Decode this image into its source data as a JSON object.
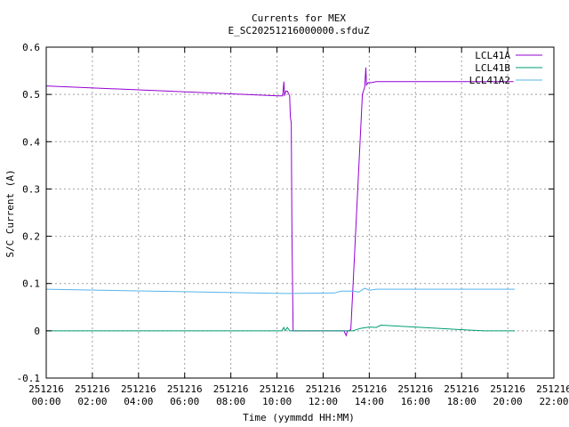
{
  "chart_data": {
    "type": "line",
    "title": "Currents for MEX",
    "subtitle": "E_SC20251216000000.sfduZ",
    "xlabel": "Time (yymmdd HH:MM)",
    "ylabel": "S/C Current (A)",
    "xlim": [
      0,
      22
    ],
    "ylim": [
      -0.1,
      0.6
    ],
    "grid": true,
    "legend_position": "top-right",
    "x_ticks": [
      {
        "value": 0,
        "date": "251216",
        "time": "00:00"
      },
      {
        "value": 2,
        "date": "251216",
        "time": "02:00"
      },
      {
        "value": 4,
        "date": "251216",
        "time": "04:00"
      },
      {
        "value": 6,
        "date": "251216",
        "time": "06:00"
      },
      {
        "value": 8,
        "date": "251216",
        "time": "08:00"
      },
      {
        "value": 10,
        "date": "251216",
        "time": "10:00"
      },
      {
        "value": 12,
        "date": "251216",
        "time": "12:00"
      },
      {
        "value": 14,
        "date": "251216",
        "time": "14:00"
      },
      {
        "value": 16,
        "date": "251216",
        "time": "16:00"
      },
      {
        "value": 18,
        "date": "251216",
        "time": "18:00"
      },
      {
        "value": 20,
        "date": "251216",
        "time": "20:00"
      },
      {
        "value": 22,
        "date": "251216",
        "time": "22:00"
      }
    ],
    "y_ticks": [
      "-0.1",
      "0",
      "0.1",
      "0.2",
      "0.3",
      "0.4",
      "0.5",
      "0.6"
    ],
    "series": [
      {
        "name": "LCL41A",
        "color": "#9400d3",
        "x": [
          0,
          10.05,
          10.25,
          10.3,
          10.33,
          10.38,
          10.45,
          10.55,
          10.58,
          10.62,
          10.65,
          10.7,
          10.72,
          12.9,
          13.0,
          13.05,
          13.12,
          13.2,
          13.3,
          13.5,
          13.7,
          13.8,
          13.85,
          13.88,
          13.95,
          14.1,
          14.3,
          18.8,
          19.0,
          19.5,
          20.0,
          20.25
        ],
        "y": [
          0.518,
          0.497,
          0.497,
          0.527,
          0.497,
          0.507,
          0.507,
          0.497,
          0.452,
          0.44,
          0.2,
          0.0,
          0.0,
          0.0,
          -0.01,
          0.0,
          0.0,
          0.003,
          0.1,
          0.3,
          0.5,
          0.515,
          0.557,
          0.52,
          0.525,
          0.525,
          0.527,
          0.527,
          0.527,
          0.527,
          0.527,
          0.527
        ]
      },
      {
        "name": "LCL41B",
        "color": "#009e73",
        "x": [
          0,
          10.0,
          10.2,
          10.3,
          10.35,
          10.45,
          10.55,
          10.75,
          12.8,
          13.0,
          13.3,
          13.6,
          14.0,
          14.3,
          14.5,
          18.5,
          19.0,
          19.5,
          20.0,
          20.3
        ],
        "y": [
          0.0,
          0.0,
          0.0,
          0.007,
          0.0,
          0.007,
          0.0,
          0.0,
          0.0,
          0.0,
          0.0,
          0.005,
          0.008,
          0.007,
          0.012,
          0.001,
          0.0,
          0.0,
          0.0,
          0.0
        ]
      },
      {
        "name": "LCL41A2",
        "color": "#56b4e9",
        "x": [
          0,
          10.3,
          10.7,
          12.5,
          12.8,
          13.3,
          13.55,
          13.8,
          14.0,
          14.3,
          14.5,
          18.8,
          20.3
        ],
        "y": [
          0.088,
          0.079,
          0.079,
          0.08,
          0.084,
          0.084,
          0.082,
          0.09,
          0.086,
          0.088,
          0.088,
          0.088,
          0.088
        ]
      }
    ]
  }
}
